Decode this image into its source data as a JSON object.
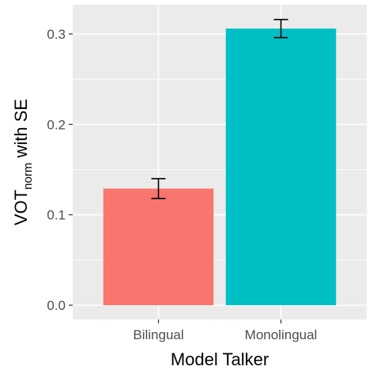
{
  "chart_data": {
    "type": "bar",
    "title": "",
    "categories": [
      "Bilingual",
      "Monolingual"
    ],
    "values": [
      0.129,
      0.306
    ],
    "error_se": [
      0.011,
      0.01
    ],
    "colors": [
      "#F8766D",
      "#00BFC4"
    ],
    "xlabel": "Model Talker",
    "ylabel": {
      "prefix": "VOT",
      "subscript": "norm",
      "suffix": " with SE"
    },
    "ylim": [
      0,
      0.32
    ],
    "yticks": [
      0.0,
      0.1,
      0.2,
      0.3
    ],
    "ytick_labels": [
      "0.0",
      "0.1",
      "0.2",
      "0.3"
    ],
    "grid": true,
    "panel_background": "#EBEBEB",
    "grid_color": "#FFFFFF"
  }
}
